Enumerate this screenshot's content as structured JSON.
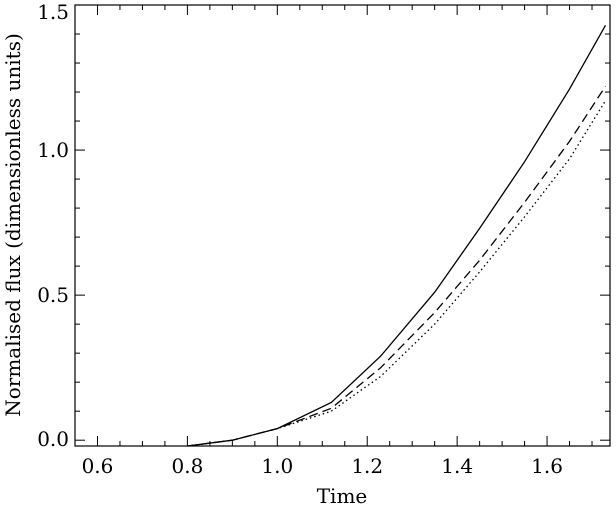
{
  "chart_data": {
    "type": "line",
    "title": "",
    "xlabel": "Time",
    "ylabel": "Normalised flux (dimensionless units)",
    "xlim": [
      0.55,
      1.74
    ],
    "ylim": [
      -0.02,
      1.5
    ],
    "x_ticks": [
      0.6,
      0.8,
      1.0,
      1.2,
      1.4,
      1.6
    ],
    "x_tick_labels": [
      "0.6",
      "0.8",
      "1.0",
      "1.2",
      "1.4",
      "1.6"
    ],
    "y_ticks": [
      0.0,
      0.5,
      1.0,
      1.5
    ],
    "y_tick_labels": [
      "0.0",
      "0.5",
      "1.0",
      "1.5"
    ],
    "grid": false,
    "legend": "none",
    "series": [
      {
        "style": "solid",
        "x": [
          0.8,
          0.9,
          1.0,
          1.12,
          1.23,
          1.35,
          1.45,
          1.55,
          1.65,
          1.73
        ],
        "y": [
          -0.02,
          0.0,
          0.04,
          0.13,
          0.29,
          0.51,
          0.73,
          0.96,
          1.21,
          1.43
        ]
      },
      {
        "style": "dashed",
        "x": [
          0.8,
          0.9,
          1.0,
          1.12,
          1.23,
          1.35,
          1.45,
          1.55,
          1.65,
          1.73
        ],
        "y": [
          -0.02,
          0.0,
          0.04,
          0.11,
          0.25,
          0.44,
          0.62,
          0.82,
          1.03,
          1.22
        ]
      },
      {
        "style": "dotted",
        "x": [
          0.8,
          0.9,
          1.0,
          1.12,
          1.23,
          1.35,
          1.45,
          1.55,
          1.65,
          1.73
        ],
        "y": [
          -0.02,
          0.0,
          0.04,
          0.1,
          0.22,
          0.4,
          0.58,
          0.77,
          0.97,
          1.17
        ]
      }
    ]
  }
}
